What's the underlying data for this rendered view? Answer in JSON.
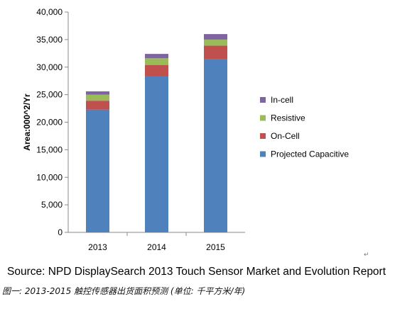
{
  "chart_data": {
    "type": "bar",
    "stacked": true,
    "categories": [
      "2013",
      "2014",
      "2015"
    ],
    "series": [
      {
        "name": "Projected Capacitive",
        "color": "#4F81BD",
        "values": [
          22300,
          28300,
          31400
        ]
      },
      {
        "name": "On-Cell",
        "color": "#C0504D",
        "values": [
          1600,
          2100,
          2500
        ]
      },
      {
        "name": "Resistive",
        "color": "#9BBB59",
        "values": [
          1100,
          1200,
          1100
        ]
      },
      {
        "name": "In-cell",
        "color": "#8064A2",
        "values": [
          600,
          800,
          1000
        ]
      }
    ],
    "ylabel": "Area:000^2/Yr",
    "ylim": [
      0,
      40000
    ],
    "yticks": [
      "0",
      "5,000",
      "10,000",
      "15,000",
      "20,000",
      "25,000",
      "30,000",
      "35,000",
      "40,000"
    ],
    "legend_position": "right",
    "legend_order": [
      "In-cell",
      "Resistive",
      "On-Cell",
      "Projected Capacitive"
    ],
    "grid": false
  },
  "source": "Source: NPD DisplaySearch 2013 Touch Sensor Market and Evolution Report",
  "caption": "图一: 2013-2015 触控传感器出货面积预测 (单位: 千平方米/年)",
  "return_mark": "↵"
}
